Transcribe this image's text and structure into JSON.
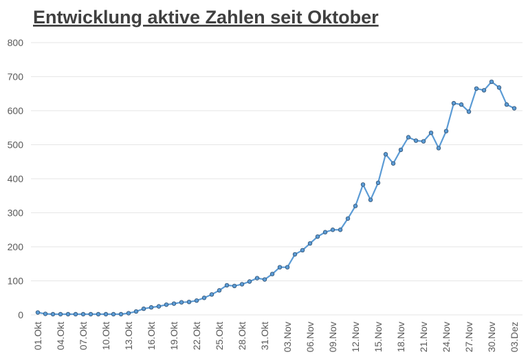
{
  "chart_data": {
    "type": "line",
    "title": "Entwicklung aktive Zahlen seit Oktober",
    "categories": [
      "01.Okt",
      null,
      null,
      "04.Okt",
      null,
      null,
      "07.Okt",
      null,
      null,
      "10.Okt",
      null,
      null,
      "13.Okt",
      null,
      null,
      "16.Okt",
      null,
      null,
      "19.Okt",
      null,
      null,
      "22.Okt",
      null,
      null,
      "25.Okt",
      null,
      null,
      "28.Okt",
      null,
      null,
      "31.Okt",
      null,
      null,
      "03.Nov",
      null,
      null,
      "06.Nov",
      null,
      null,
      "09.Nov",
      null,
      null,
      "12.Nov",
      null,
      null,
      "15.Nov",
      null,
      null,
      "18.Nov",
      null,
      null,
      "21.Nov",
      null,
      null,
      "24.Nov",
      null,
      null,
      "27.Nov",
      null,
      null,
      "30.Nov",
      null,
      null,
      "03.Dez"
    ],
    "values": [
      7,
      3,
      2,
      2,
      2,
      2,
      2,
      2,
      2,
      2,
      2,
      2,
      5,
      10,
      18,
      22,
      25,
      30,
      33,
      37,
      38,
      42,
      50,
      60,
      72,
      87,
      85,
      90,
      98,
      108,
      104,
      120,
      140,
      140,
      178,
      190,
      210,
      230,
      243,
      250,
      250,
      283,
      320,
      383,
      338,
      388,
      472,
      445,
      485,
      522,
      512,
      510,
      535,
      490,
      540,
      622,
      618,
      597,
      665,
      660,
      685,
      668,
      618,
      607
    ],
    "color": "#5b9bd5",
    "ylim": [
      0,
      800
    ],
    "yticks": [
      0,
      100,
      200,
      300,
      400,
      500,
      600,
      700,
      800
    ],
    "grid": true
  }
}
